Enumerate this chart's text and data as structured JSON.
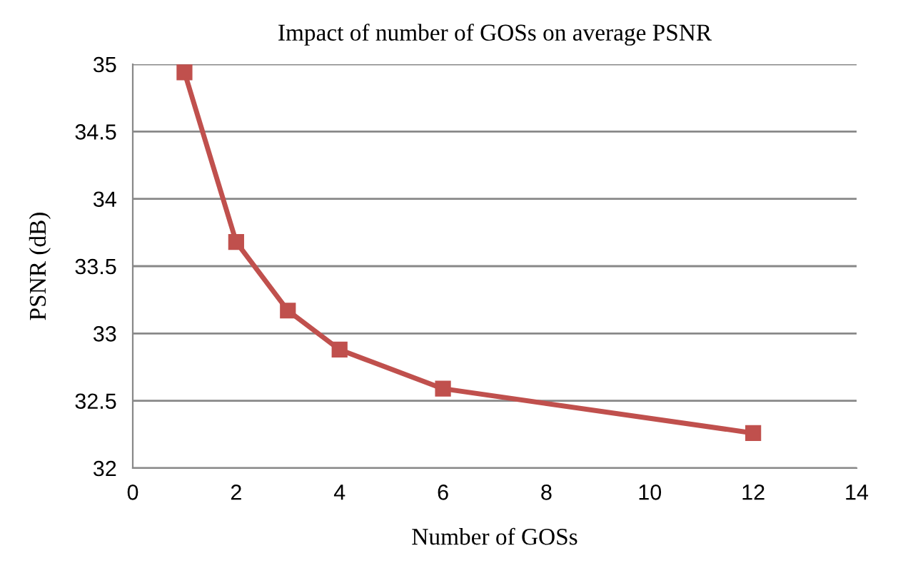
{
  "chart_data": {
    "type": "line",
    "title": "Impact of number of GOSs on average PSNR",
    "xlabel": "Number of GOSs",
    "ylabel": "PSNR (dB)",
    "series": [
      {
        "color": "#c0504d",
        "x": [
          1,
          2,
          3,
          4,
          6,
          12
        ],
        "values": [
          34.94,
          33.68,
          33.17,
          32.88,
          32.59,
          32.26
        ]
      }
    ],
    "xlim": [
      0,
      14
    ],
    "xticks": [
      0,
      2,
      4,
      6,
      8,
      10,
      12,
      14
    ],
    "ylim": [
      32,
      35
    ],
    "yticks": [
      32,
      32.5,
      33,
      33.5,
      34,
      34.5,
      35
    ],
    "grid": "y",
    "marker": "square",
    "line_style": "solid"
  }
}
